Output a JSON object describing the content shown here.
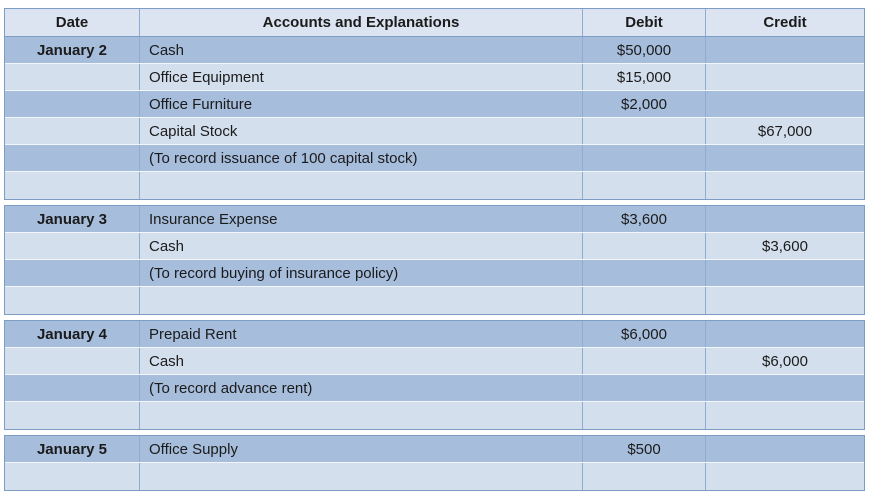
{
  "colors": {
    "header_bg": "#dbe4f0",
    "row_dark": "#a6bddc",
    "row_light": "#d4dfee",
    "border_outer": "#7e9dc5",
    "border_inner_vertical": "#8fabd0",
    "row_separator": "#f2f6fb",
    "text": "#1b1b1b",
    "page_bg": "#ffffff"
  },
  "table": {
    "columns": [
      "Date",
      "Accounts and Explanations",
      "Debit",
      "Credit"
    ],
    "entries": [
      {
        "rows": [
          {
            "date": "January 2",
            "account": "Cash",
            "debit": "$50,000",
            "credit": ""
          },
          {
            "date": "",
            "account": "Office Equipment",
            "debit": "$15,000",
            "credit": ""
          },
          {
            "date": "",
            "account": "Office Furniture",
            "debit": "$2,000",
            "credit": ""
          },
          {
            "date": "",
            "account": "Capital Stock",
            "debit": "",
            "credit": "$67,000"
          },
          {
            "date": "",
            "account": "(To record issuance of 100 capital stock)",
            "debit": "",
            "credit": ""
          },
          {
            "date": "",
            "account": "",
            "debit": "",
            "credit": ""
          }
        ]
      },
      {
        "rows": [
          {
            "date": "January 3",
            "account": "Insurance Expense",
            "debit": "$3,600",
            "credit": ""
          },
          {
            "date": "",
            "account": "Cash",
            "debit": "",
            "credit": "$3,600"
          },
          {
            "date": "",
            "account": "(To record buying of insurance policy)",
            "debit": "",
            "credit": ""
          },
          {
            "date": "",
            "account": "",
            "debit": "",
            "credit": ""
          }
        ]
      },
      {
        "rows": [
          {
            "date": "January 4",
            "account": "Prepaid Rent",
            "debit": "$6,000",
            "credit": ""
          },
          {
            "date": "",
            "account": "Cash",
            "debit": "",
            "credit": "$6,000"
          },
          {
            "date": "",
            "account": "(To record advance rent)",
            "debit": "",
            "credit": ""
          },
          {
            "date": "",
            "account": "",
            "debit": "",
            "credit": ""
          }
        ]
      },
      {
        "rows": [
          {
            "date": "January 5",
            "account": "Office Supply",
            "debit": "$500",
            "credit": ""
          },
          {
            "date": "",
            "account": "",
            "debit": "",
            "credit": ""
          }
        ]
      }
    ]
  }
}
